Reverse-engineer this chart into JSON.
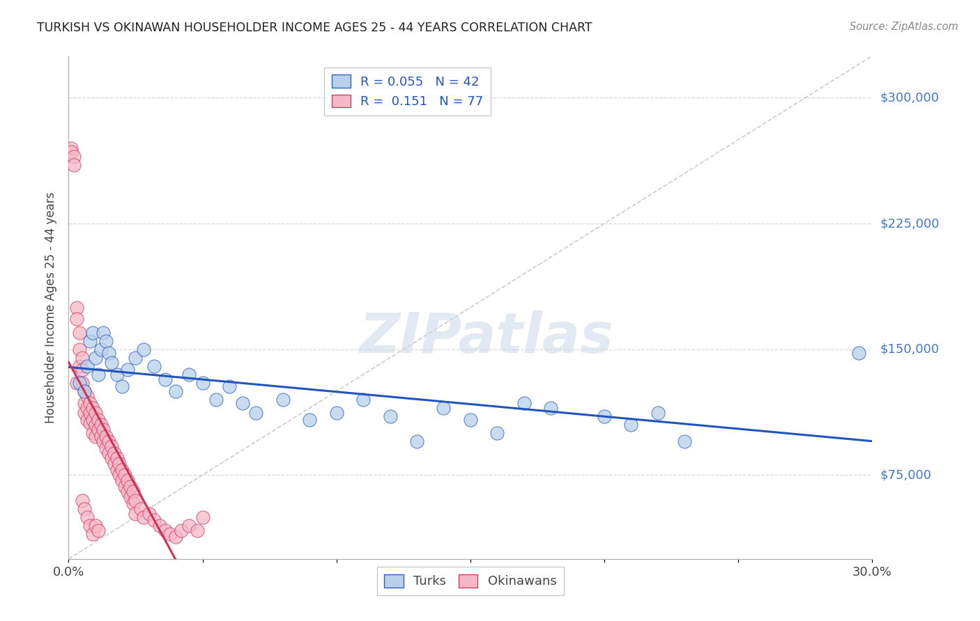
{
  "title": "TURKISH VS OKINAWAN HOUSEHOLDER INCOME AGES 25 - 44 YEARS CORRELATION CHART",
  "source": "Source: ZipAtlas.com",
  "ylabel": "Householder Income Ages 25 - 44 years",
  "xlim": [
    0.0,
    0.3
  ],
  "ylim": [
    25000,
    325000
  ],
  "R_turks": 0.055,
  "N_turks": 42,
  "R_okinawans": 0.151,
  "N_okinawans": 77,
  "color_turks_fill": "#b8d0ea",
  "color_turks_edge": "#3060c0",
  "color_okinawans_fill": "#f5b8c8",
  "color_okinawans_edge": "#d04060",
  "color_turks_line": "#2255bb",
  "color_okinawans_line": "#cc3355",
  "color_diagonal": "#cccccc",
  "color_grid": "#d8d8d8",
  "color_ytick_label": "#4477cc",
  "ytick_positions": [
    75000,
    150000,
    225000,
    300000
  ],
  "ytick_labels": [
    "$75,000",
    "$150,000",
    "$225,000",
    "$300,000"
  ],
  "xtick_labels_show": [
    "0.0%",
    "30.0%"
  ],
  "watermark_text": "ZIPatlas",
  "legend_labels": [
    "R = 0.055   N = 42",
    "R =  0.151   N = 77"
  ],
  "bottom_legend_labels": [
    "Turks",
    "Okinawans"
  ],
  "turks_x": [
    0.004,
    0.006,
    0.007,
    0.008,
    0.009,
    0.01,
    0.011,
    0.012,
    0.013,
    0.014,
    0.015,
    0.016,
    0.018,
    0.02,
    0.022,
    0.025,
    0.028,
    0.032,
    0.036,
    0.04,
    0.045,
    0.05,
    0.055,
    0.06,
    0.065,
    0.07,
    0.08,
    0.09,
    0.1,
    0.11,
    0.12,
    0.13,
    0.14,
    0.15,
    0.16,
    0.17,
    0.18,
    0.2,
    0.21,
    0.22,
    0.23,
    0.295
  ],
  "turks_y": [
    130000,
    125000,
    140000,
    155000,
    160000,
    145000,
    135000,
    150000,
    160000,
    155000,
    148000,
    142000,
    135000,
    128000,
    138000,
    145000,
    150000,
    140000,
    132000,
    125000,
    135000,
    130000,
    120000,
    128000,
    118000,
    112000,
    120000,
    108000,
    112000,
    120000,
    110000,
    95000,
    115000,
    108000,
    100000,
    118000,
    115000,
    110000,
    105000,
    112000,
    95000,
    148000
  ],
  "okinawans_x": [
    0.001,
    0.001,
    0.002,
    0.002,
    0.003,
    0.003,
    0.003,
    0.004,
    0.004,
    0.004,
    0.005,
    0.005,
    0.005,
    0.006,
    0.006,
    0.006,
    0.007,
    0.007,
    0.007,
    0.008,
    0.008,
    0.008,
    0.009,
    0.009,
    0.009,
    0.01,
    0.01,
    0.01,
    0.011,
    0.011,
    0.012,
    0.012,
    0.013,
    0.013,
    0.014,
    0.014,
    0.015,
    0.015,
    0.016,
    0.016,
    0.017,
    0.017,
    0.018,
    0.018,
    0.019,
    0.019,
    0.02,
    0.02,
    0.021,
    0.021,
    0.022,
    0.022,
    0.023,
    0.023,
    0.024,
    0.024,
    0.025,
    0.025,
    0.027,
    0.028,
    0.03,
    0.032,
    0.034,
    0.036,
    0.038,
    0.04,
    0.042,
    0.045,
    0.048,
    0.05,
    0.005,
    0.006,
    0.007,
    0.008,
    0.009,
    0.01,
    0.011
  ],
  "okinawans_y": [
    270000,
    268000,
    265000,
    260000,
    175000,
    168000,
    130000,
    160000,
    150000,
    140000,
    145000,
    138000,
    130000,
    125000,
    118000,
    112000,
    108000,
    115000,
    122000,
    118000,
    112000,
    106000,
    115000,
    108000,
    100000,
    112000,
    105000,
    98000,
    108000,
    102000,
    105000,
    98000,
    102000,
    95000,
    98000,
    91000,
    95000,
    88000,
    92000,
    85000,
    88000,
    82000,
    85000,
    78000,
    82000,
    75000,
    78000,
    72000,
    75000,
    68000,
    72000,
    65000,
    68000,
    62000,
    65000,
    58000,
    60000,
    52000,
    55000,
    50000,
    52000,
    48000,
    45000,
    42000,
    40000,
    38000,
    42000,
    45000,
    42000,
    50000,
    60000,
    55000,
    50000,
    45000,
    40000,
    45000,
    42000
  ]
}
